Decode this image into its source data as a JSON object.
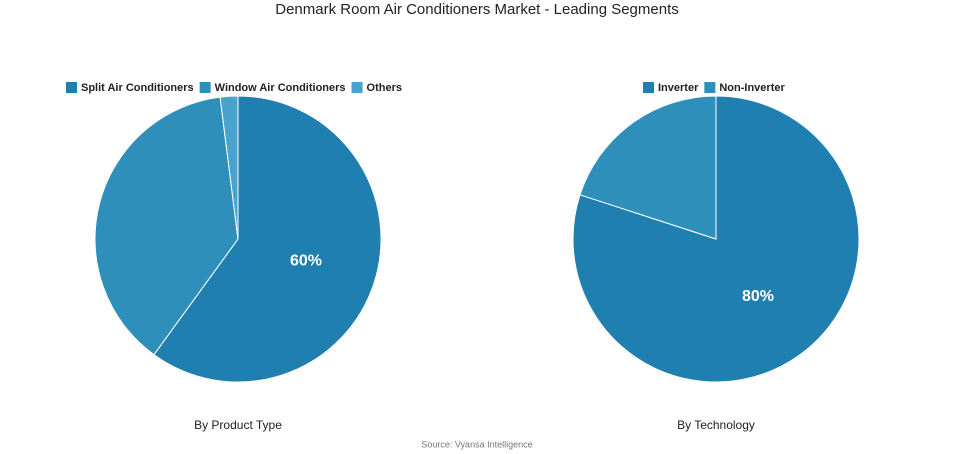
{
  "title": "Denmark Room Air Conditioners Market - Leading Segments",
  "source": "Source: Vyansa Intelligence",
  "chart_data": [
    {
      "type": "pie",
      "title": "By Product Type",
      "categories": [
        "Split Air Conditioners",
        "Window Air Conditioners",
        "Others"
      ],
      "values": [
        60,
        38,
        2
      ],
      "value_labels": [
        "60%",
        null,
        null
      ],
      "colors": [
        "#1f7fb0",
        "#2e8fbb",
        "#4aa3cc"
      ]
    },
    {
      "type": "pie",
      "title": "By Technology",
      "categories": [
        "Inverter",
        "Non-Inverter"
      ],
      "values": [
        80,
        20
      ],
      "value_labels": [
        "80%",
        null
      ],
      "colors": [
        "#1f7fb0",
        "#2e8fbb"
      ]
    }
  ]
}
